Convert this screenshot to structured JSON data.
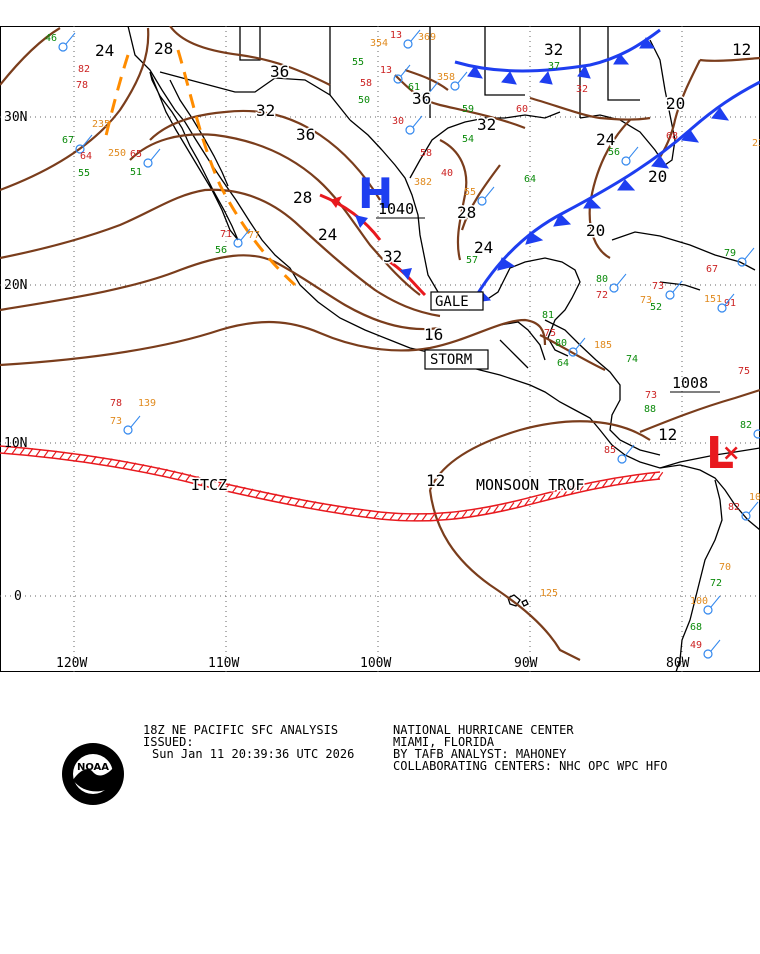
{
  "map": {
    "lat_labels": [
      "30N",
      "20N",
      "10N",
      "0"
    ],
    "lon_labels": [
      "120W",
      "110W",
      "100W",
      "90W",
      "80W"
    ],
    "isobars": [
      "24",
      "28",
      "36",
      "32",
      "36",
      "36",
      "28",
      "32",
      "24",
      "28",
      "24",
      "32",
      "16",
      "20",
      "24",
      "20",
      "12",
      "12",
      "12",
      "20",
      "32"
    ],
    "pressure_centers": [
      {
        "type": "H",
        "value": "1040",
        "color": "#1e3ef0"
      },
      {
        "type": "L",
        "value": "1008",
        "color": "#e8191e"
      }
    ],
    "warnings": [
      "GALE",
      "STORM"
    ],
    "features": {
      "itcz": "ITCZ",
      "monsoon": "MONSOON TROF"
    },
    "colors": {
      "isobar": "#7a3d1c",
      "cold_front": "#1e3ef0",
      "warm_front": "#e8191e",
      "trough": "#ff8c00",
      "itcz": "#e8191e",
      "coast": "#000000",
      "grid": "#555555"
    },
    "station_values": [
      "46",
      "82",
      "78",
      "67",
      "64",
      "55",
      "65",
      "51",
      "56",
      "71",
      "77",
      "55",
      "30",
      "58",
      "50",
      "13",
      "54",
      "40",
      "61",
      "59",
      "60",
      "55",
      "57",
      "58",
      "13",
      "37",
      "32",
      "56",
      "68",
      "64",
      "80",
      "72",
      "73",
      "79",
      "91",
      "75",
      "82",
      "73",
      "88",
      "85",
      "74",
      "52",
      "82",
      "70",
      "72",
      "73",
      "67",
      "68",
      "49",
      "81",
      "75",
      "80",
      "64",
      "78",
      "73",
      "139",
      "125",
      "100",
      "102",
      "185",
      "151",
      "250",
      "235",
      "236",
      "369",
      "354",
      "358",
      "382"
    ]
  },
  "footer": {
    "analysis_title": "18Z NE PACIFIC SFC ANALYSIS",
    "issued_label": "ISSUED:",
    "issued_time": "Sun Jan 11 20:39:36 UTC 2026",
    "center_name": "NATIONAL HURRICANE CENTER",
    "center_location": "MIAMI, FLORIDA",
    "analyst": "BY TAFB ANALYST: MAHONEY",
    "collaborating": "COLLABORATING CENTERS: NHC OPC WPC HFO",
    "logo_text": "NOAA"
  }
}
